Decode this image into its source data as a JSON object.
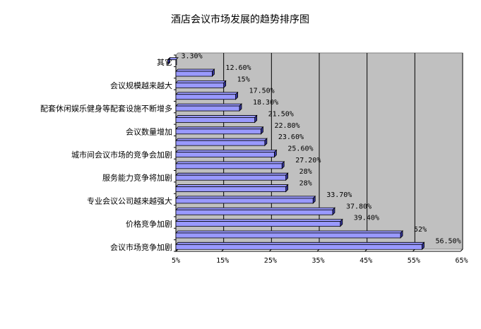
{
  "chart_data": {
    "type": "bar",
    "orientation": "horizontal",
    "title": "酒店会议市场发展的趋势排序图",
    "xlabel": "",
    "ylabel": "",
    "xlim": [
      5,
      65
    ],
    "x_ticks": [
      "5%",
      "15%",
      "25%",
      "35%",
      "45%",
      "55%",
      "65%"
    ],
    "x_tick_values": [
      5,
      15,
      25,
      35,
      45,
      55,
      65
    ],
    "grid": "vertical",
    "legend": "none",
    "categories": [
      "其它",
      "",
      "会议规模越来越大",
      "",
      "配套休闲娱乐健身等配套设施不断增多",
      "",
      "会议数量增加",
      "",
      "城市间会议市场的竞争会加剧",
      "",
      "服务能力竞争将加剧",
      "",
      "专业会议公司越来越强大",
      "",
      "价格竞争加剧",
      "",
      "会议市场竞争加剧"
    ],
    "values": [
      3.3,
      12.6,
      15,
      17.5,
      18.3,
      21.5,
      22.8,
      23.6,
      25.6,
      27.2,
      28,
      28,
      33.7,
      37.8,
      39.4,
      52,
      56.5
    ],
    "data_labels": [
      "3.30%",
      "12.60%",
      "15%",
      "17.50%",
      "18.30%",
      "21.50%",
      "22.80%",
      "23.60%",
      "25.60%",
      "27.20%",
      "28%",
      "28%",
      "33.70%",
      "37.80%",
      "39.40%",
      "52%",
      "56.50%"
    ],
    "colors": {
      "plot_background": "#c0c0c0",
      "bar_fill": "#9999ff",
      "bar_outline": "#000000",
      "bar_shadow": "#333399",
      "grid": "#000000"
    }
  }
}
